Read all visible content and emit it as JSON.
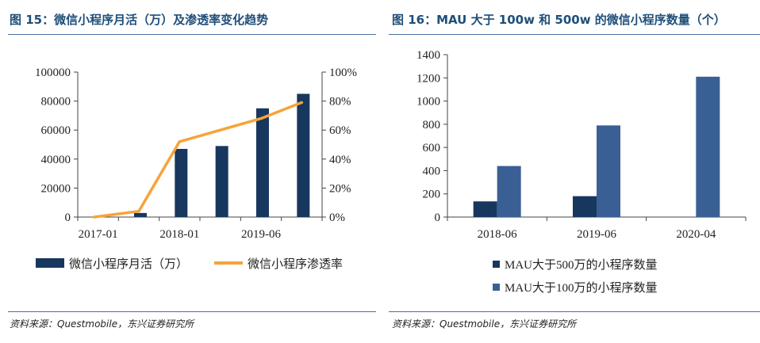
{
  "left": {
    "figure_title": "图 15：微信小程序月活（万）及渗透率变化趋势",
    "source": "资料来源：Questmobile，东兴证券研究所"
  },
  "right": {
    "figure_title": "图 16：MAU 大于 100w 和 500w 的微信小程序数量（个）",
    "source": "资料来源：Questmobile，东兴证券研究所"
  },
  "colors": {
    "dark_blue": "#17375e",
    "mid_blue": "#3a5f95",
    "orange": "#f7a33a",
    "axis": "#444444",
    "title": "#1f4e79"
  },
  "chart_data": [
    {
      "type": "bar",
      "title": "微信小程序月活（万）及渗透率变化趋势",
      "categories": [
        "2017-01",
        "",
        "2018-01",
        "",
        "2019-06",
        ""
      ],
      "x_tick_labels": [
        "2017-01",
        "2018-01",
        "2019-06"
      ],
      "y_ticks": [
        0,
        20000,
        40000,
        60000,
        80000,
        100000
      ],
      "y_tick_labels": [
        "0",
        "20000",
        "40000",
        "60000",
        "80000",
        "100000"
      ],
      "ylim": [
        0,
        100000
      ],
      "y2_ticks": [
        0,
        20,
        40,
        60,
        80,
        100
      ],
      "y2_tick_labels": [
        "0%",
        "20%",
        "40%",
        "60%",
        "80%",
        "100%"
      ],
      "y2lim": [
        0,
        100
      ],
      "series": [
        {
          "name": "微信小程序月活（万）",
          "type": "bar",
          "axis": "left",
          "values": [
            0,
            2800,
            47000,
            49000,
            75000,
            85000
          ]
        },
        {
          "name": "微信小程序渗透率",
          "type": "line",
          "axis": "right",
          "values": [
            0,
            4,
            52,
            60,
            68,
            79
          ]
        }
      ],
      "legend": [
        "微信小程序月活（万）",
        "微信小程序渗透率"
      ],
      "legend_position": "bottom"
    },
    {
      "type": "bar",
      "title": "MAU 大于 100w 和 500w 的微信小程序数量（个）",
      "categories": [
        "2018-06",
        "2019-06",
        "2020-04"
      ],
      "y_ticks": [
        0,
        200,
        400,
        600,
        800,
        1000,
        1200,
        1400
      ],
      "y_tick_labels": [
        "0",
        "200",
        "400",
        "600",
        "800",
        "1000",
        "1200",
        "1400"
      ],
      "ylim": [
        0,
        1400
      ],
      "series": [
        {
          "name": "MAU大于500万的小程序数量",
          "values": [
            135,
            180,
            0
          ]
        },
        {
          "name": "MAU大于100万的小程序数量",
          "values": [
            440,
            790,
            1210
          ]
        }
      ],
      "legend": [
        "MAU大于500万的小程序数量",
        "MAU大于100万的小程序数量"
      ],
      "legend_position": "bottom"
    }
  ]
}
